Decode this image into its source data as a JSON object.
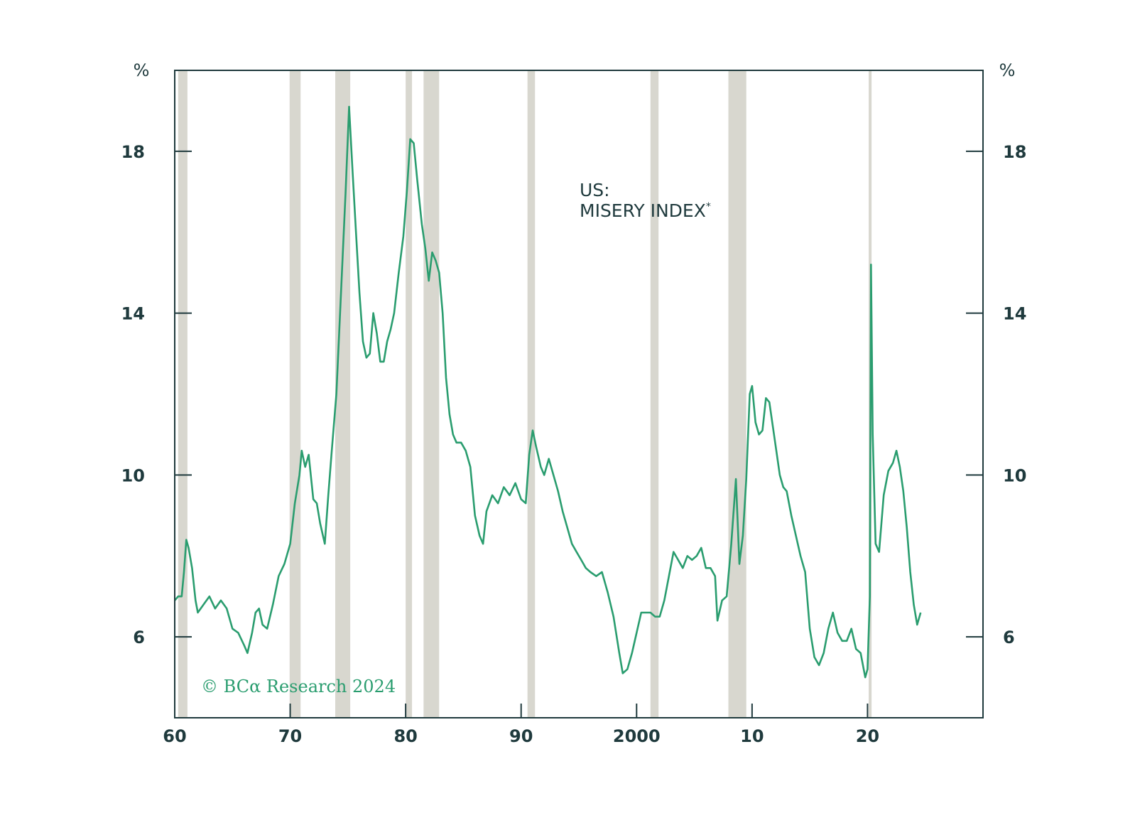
{
  "chart_data": {
    "type": "line",
    "title_line1": "US:",
    "title_line2": "MISERY INDEX",
    "title_footnote_mark": "*",
    "y_unit_left": "%",
    "y_unit_right": "%",
    "copyright": "© BCα Research 2024",
    "xlim": [
      1960,
      2030
    ],
    "ylim": [
      4,
      20
    ],
    "x_ticks": [
      {
        "value": 1960,
        "label": "60"
      },
      {
        "value": 1970,
        "label": "70"
      },
      {
        "value": 1980,
        "label": "80"
      },
      {
        "value": 1990,
        "label": "90"
      },
      {
        "value": 2000,
        "label": "2000"
      },
      {
        "value": 2010,
        "label": "10"
      },
      {
        "value": 2020,
        "label": "20"
      }
    ],
    "y_ticks": [
      {
        "value": 6,
        "label": "6"
      },
      {
        "value": 10,
        "label": "10"
      },
      {
        "value": 14,
        "label": "14"
      },
      {
        "value": 18,
        "label": "18"
      }
    ],
    "recessions": [
      [
        1960.3,
        1961.1
      ],
      [
        1969.95,
        1970.9
      ],
      [
        1973.9,
        1975.2
      ],
      [
        1980.0,
        1980.55
      ],
      [
        1981.55,
        1982.9
      ],
      [
        1990.55,
        1991.2
      ],
      [
        2001.2,
        2001.9
      ],
      [
        2007.95,
        2009.5
      ],
      [
        2020.1,
        2020.35
      ]
    ],
    "colors": {
      "line": "#2a9d6f",
      "recession": "#d8d7cf",
      "axis": "#1f3a3d",
      "copyright": "#2a9d6f"
    },
    "series": [
      {
        "values": [
          [
            1960.0,
            6.9
          ],
          [
            1960.3,
            7.0
          ],
          [
            1960.6,
            7.0
          ],
          [
            1960.8,
            7.6
          ],
          [
            1961.0,
            8.4
          ],
          [
            1961.2,
            8.2
          ],
          [
            1961.5,
            7.7
          ],
          [
            1961.8,
            6.9
          ],
          [
            1962.0,
            6.6
          ],
          [
            1962.5,
            6.8
          ],
          [
            1963.0,
            7.0
          ],
          [
            1963.5,
            6.7
          ],
          [
            1964.0,
            6.9
          ],
          [
            1964.5,
            6.7
          ],
          [
            1965.0,
            6.2
          ],
          [
            1965.5,
            6.1
          ],
          [
            1966.0,
            5.8
          ],
          [
            1966.3,
            5.6
          ],
          [
            1966.7,
            6.1
          ],
          [
            1967.0,
            6.6
          ],
          [
            1967.3,
            6.7
          ],
          [
            1967.6,
            6.3
          ],
          [
            1968.0,
            6.2
          ],
          [
            1968.5,
            6.8
          ],
          [
            1969.0,
            7.5
          ],
          [
            1969.5,
            7.8
          ],
          [
            1970.0,
            8.3
          ],
          [
            1970.4,
            9.3
          ],
          [
            1970.8,
            10.0
          ],
          [
            1971.0,
            10.6
          ],
          [
            1971.3,
            10.2
          ],
          [
            1971.6,
            10.5
          ],
          [
            1972.0,
            9.4
          ],
          [
            1972.3,
            9.3
          ],
          [
            1972.6,
            8.8
          ],
          [
            1973.0,
            8.3
          ],
          [
            1973.3,
            9.5
          ],
          [
            1973.6,
            10.6
          ],
          [
            1974.0,
            12.0
          ],
          [
            1974.4,
            14.5
          ],
          [
            1974.8,
            17.0
          ],
          [
            1975.1,
            19.1
          ],
          [
            1975.4,
            17.5
          ],
          [
            1975.7,
            16.0
          ],
          [
            1976.0,
            14.5
          ],
          [
            1976.3,
            13.3
          ],
          [
            1976.6,
            12.9
          ],
          [
            1976.9,
            13.0
          ],
          [
            1977.2,
            14.0
          ],
          [
            1977.5,
            13.5
          ],
          [
            1977.8,
            12.8
          ],
          [
            1978.1,
            12.8
          ],
          [
            1978.4,
            13.3
          ],
          [
            1978.7,
            13.6
          ],
          [
            1979.0,
            14.0
          ],
          [
            1979.4,
            15.0
          ],
          [
            1979.8,
            15.9
          ],
          [
            1980.1,
            17.0
          ],
          [
            1980.4,
            18.3
          ],
          [
            1980.7,
            18.2
          ],
          [
            1981.0,
            17.3
          ],
          [
            1981.4,
            16.2
          ],
          [
            1981.7,
            15.6
          ],
          [
            1982.0,
            14.8
          ],
          [
            1982.3,
            15.5
          ],
          [
            1982.6,
            15.3
          ],
          [
            1982.9,
            15.0
          ],
          [
            1983.2,
            14.0
          ],
          [
            1983.5,
            12.4
          ],
          [
            1983.8,
            11.5
          ],
          [
            1984.1,
            11.0
          ],
          [
            1984.4,
            10.8
          ],
          [
            1984.8,
            10.8
          ],
          [
            1985.2,
            10.6
          ],
          [
            1985.6,
            10.2
          ],
          [
            1986.0,
            9.0
          ],
          [
            1986.4,
            8.5
          ],
          [
            1986.7,
            8.3
          ],
          [
            1987.0,
            9.1
          ],
          [
            1987.5,
            9.5
          ],
          [
            1988.0,
            9.3
          ],
          [
            1988.5,
            9.7
          ],
          [
            1989.0,
            9.5
          ],
          [
            1989.5,
            9.8
          ],
          [
            1990.0,
            9.4
          ],
          [
            1990.4,
            9.3
          ],
          [
            1990.7,
            10.5
          ],
          [
            1991.0,
            11.1
          ],
          [
            1991.3,
            10.7
          ],
          [
            1991.7,
            10.2
          ],
          [
            1992.0,
            10.0
          ],
          [
            1992.4,
            10.4
          ],
          [
            1992.8,
            10.0
          ],
          [
            1993.2,
            9.6
          ],
          [
            1993.6,
            9.1
          ],
          [
            1994.0,
            8.7
          ],
          [
            1994.4,
            8.3
          ],
          [
            1994.8,
            8.1
          ],
          [
            1995.2,
            7.9
          ],
          [
            1995.6,
            7.7
          ],
          [
            1996.0,
            7.6
          ],
          [
            1996.5,
            7.5
          ],
          [
            1997.0,
            7.6
          ],
          [
            1997.5,
            7.1
          ],
          [
            1998.0,
            6.5
          ],
          [
            1998.5,
            5.6
          ],
          [
            1998.8,
            5.1
          ],
          [
            1999.2,
            5.2
          ],
          [
            1999.6,
            5.6
          ],
          [
            2000.0,
            6.1
          ],
          [
            2000.4,
            6.6
          ],
          [
            2000.8,
            6.6
          ],
          [
            2001.2,
            6.6
          ],
          [
            2001.6,
            6.5
          ],
          [
            2002.0,
            6.5
          ],
          [
            2002.4,
            6.9
          ],
          [
            2002.8,
            7.5
          ],
          [
            2003.2,
            8.1
          ],
          [
            2003.6,
            7.9
          ],
          [
            2004.0,
            7.7
          ],
          [
            2004.4,
            8.0
          ],
          [
            2004.8,
            7.9
          ],
          [
            2005.2,
            8.0
          ],
          [
            2005.6,
            8.2
          ],
          [
            2006.0,
            7.7
          ],
          [
            2006.4,
            7.7
          ],
          [
            2006.8,
            7.5
          ],
          [
            2007.0,
            6.4
          ],
          [
            2007.4,
            6.9
          ],
          [
            2007.8,
            7.0
          ],
          [
            2008.2,
            8.3
          ],
          [
            2008.6,
            9.9
          ],
          [
            2008.9,
            7.8
          ],
          [
            2009.2,
            8.5
          ],
          [
            2009.5,
            9.9
          ],
          [
            2009.8,
            12.0
          ],
          [
            2010.0,
            12.2
          ],
          [
            2010.3,
            11.3
          ],
          [
            2010.6,
            11.0
          ],
          [
            2010.9,
            11.1
          ],
          [
            2011.2,
            11.9
          ],
          [
            2011.5,
            11.8
          ],
          [
            2011.8,
            11.2
          ],
          [
            2012.1,
            10.6
          ],
          [
            2012.4,
            10.0
          ],
          [
            2012.7,
            9.7
          ],
          [
            2013.0,
            9.6
          ],
          [
            2013.4,
            9.0
          ],
          [
            2013.8,
            8.5
          ],
          [
            2014.2,
            8.0
          ],
          [
            2014.6,
            7.6
          ],
          [
            2015.0,
            6.2
          ],
          [
            2015.4,
            5.5
          ],
          [
            2015.8,
            5.3
          ],
          [
            2016.2,
            5.6
          ],
          [
            2016.6,
            6.2
          ],
          [
            2017.0,
            6.6
          ],
          [
            2017.4,
            6.1
          ],
          [
            2017.8,
            5.9
          ],
          [
            2018.2,
            5.9
          ],
          [
            2018.6,
            6.2
          ],
          [
            2019.0,
            5.7
          ],
          [
            2019.4,
            5.6
          ],
          [
            2019.8,
            5.0
          ],
          [
            2020.0,
            5.2
          ],
          [
            2020.2,
            7.0
          ],
          [
            2020.3,
            15.2
          ],
          [
            2020.45,
            11.0
          ],
          [
            2020.7,
            8.3
          ],
          [
            2021.0,
            8.1
          ],
          [
            2021.4,
            9.5
          ],
          [
            2021.8,
            10.1
          ],
          [
            2022.2,
            10.3
          ],
          [
            2022.5,
            10.6
          ],
          [
            2022.8,
            10.2
          ],
          [
            2023.1,
            9.6
          ],
          [
            2023.4,
            8.7
          ],
          [
            2023.7,
            7.6
          ],
          [
            2024.0,
            6.8
          ],
          [
            2024.3,
            6.3
          ],
          [
            2024.6,
            6.6
          ]
        ]
      }
    ]
  }
}
